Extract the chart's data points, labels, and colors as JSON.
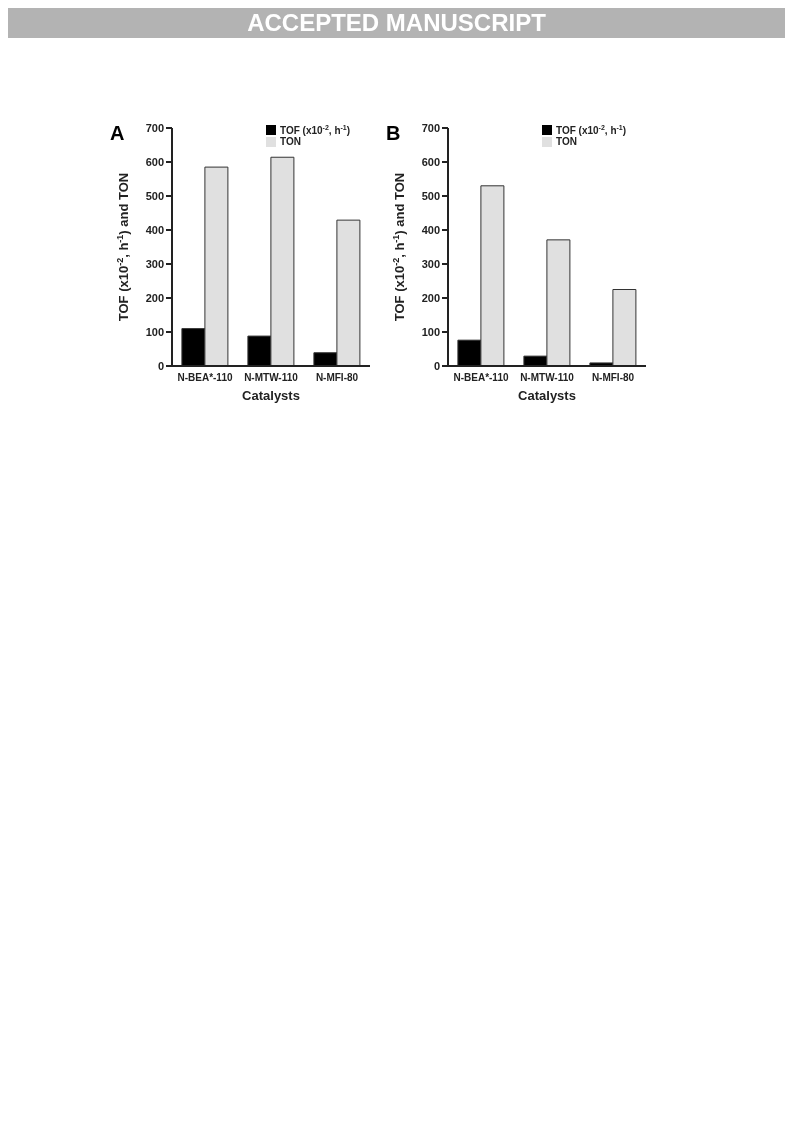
{
  "chart_data": [
    {
      "type": "bar",
      "title": "A",
      "xlabel": "Catalysts",
      "ylabel": "TOF (x10$^{-2}$, h$^{-1}$) and TON",
      "annotations": [
        "ACCEPTED MANUSCRIPT"
      ],
      "categories": [
        "N-BEA*-110",
        "N-MTW-110",
        "N-MFI-80"
      ],
      "series": [
        {
          "name": "TOF (x10$^{-2}$, h$^{-1}$)",
          "color": "#000000",
          "values": [
            110,
            88,
            39
          ]
        },
        {
          "name": "TON",
          "color": "#e0e0e0",
          "values": [
            585,
            614,
            429
          ]
        }
      ],
      "ylim": [
        0,
        700
      ],
      "yticks": [
        0,
        100,
        200,
        300,
        400,
        500,
        600,
        700
      ],
      "grid": false,
      "legend": "top right"
    },
    {
      "type": "bar",
      "title": "B",
      "xlabel": "Catalysts",
      "ylabel": "TOF (x10$^{-2}$, h$^{-1}$) and TON",
      "categories": [
        "N-BEA*-110",
        "N-MTW-110",
        "N-MFI-80"
      ],
      "series": [
        {
          "name": "TOF (x10$^{-2}$, h$^{-1}$)",
          "color": "#000000",
          "values": [
            76,
            29,
            9
          ]
        },
        {
          "name": "TON",
          "color": "#e0e0e0",
          "values": [
            530,
            371,
            225
          ]
        }
      ],
      "ylim": [
        0,
        700
      ],
      "yticks": [
        0,
        100,
        200,
        300,
        400,
        500,
        600,
        700
      ],
      "grid": false,
      "legend": "top right"
    }
  ]
}
